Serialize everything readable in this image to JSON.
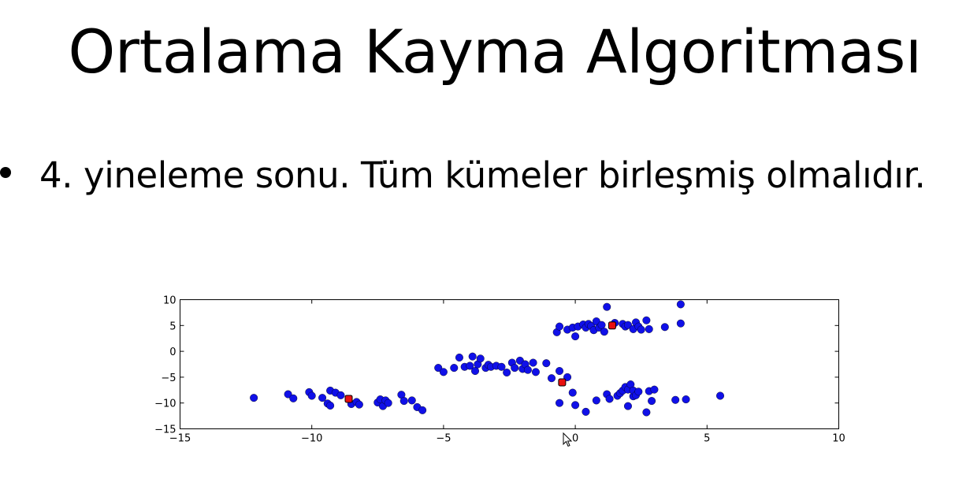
{
  "slide": {
    "title": "Ortalama Kayma Algoritması",
    "bullet": "4. yineleme sonu. Tüm kümeler birleşmiş olmalıdır."
  },
  "colors": {
    "points": "#1010e8",
    "centroids": "#e81010",
    "marker_edge": "#000000"
  },
  "chart_data": {
    "type": "scatter",
    "xlim": [
      -15,
      10
    ],
    "ylim": [
      -15,
      10
    ],
    "xticks": [
      -15,
      -10,
      -5,
      0,
      5,
      10
    ],
    "yticks": [
      10,
      5,
      0,
      -5,
      -10,
      -15
    ],
    "grid": false,
    "series": [
      {
        "color": "#1010e8",
        "x": [
          -12.2,
          -10.9,
          -10.7,
          -10.1,
          -10.0,
          -9.6,
          -9.4,
          -9.3,
          -9.3,
          -9.1,
          -8.9,
          -8.5,
          -8.3,
          -8.2,
          -7.5,
          -7.4,
          -7.3,
          -7.2,
          -7.1,
          -6.6,
          -6.5,
          -6.2,
          -6.0,
          -5.8,
          -5.2,
          -5.0,
          -4.6,
          -4.4,
          -4.2,
          -4.0,
          -3.9,
          -3.8,
          -3.7,
          -3.6,
          -3.4,
          -3.3,
          -3.2,
          -3.0,
          -2.8,
          -2.6,
          -2.4,
          -2.3,
          -2.1,
          -2.0,
          -1.9,
          -1.8,
          -1.6,
          -1.5,
          -1.1,
          -0.9,
          -0.6,
          -0.7,
          -0.6,
          -0.3,
          -0.1,
          0.0,
          0.1,
          0.3,
          0.4,
          0.5,
          0.6,
          0.7,
          0.8,
          0.9,
          1.0,
          1.1,
          1.2,
          1.5,
          1.8,
          1.9,
          2.0,
          2.2,
          2.3,
          2.4,
          2.5,
          2.7,
          2.8,
          3.4,
          4.0,
          4.0,
          -0.6,
          -0.3,
          -0.1,
          0.0,
          0.4,
          0.8,
          1.2,
          1.3,
          1.6,
          1.7,
          1.8,
          1.9,
          2.0,
          2.0,
          2.1,
          2.2,
          2.2,
          2.3,
          2.4,
          2.7,
          2.8,
          2.9,
          3.0,
          3.8,
          4.2,
          5.5
        ],
        "y": [
          -9.0,
          -8.3,
          -9.1,
          -7.9,
          -8.6,
          -9.0,
          -10.1,
          -7.6,
          -10.5,
          -8.0,
          -8.5,
          -10.2,
          -9.8,
          -10.3,
          -9.9,
          -9.3,
          -10.6,
          -9.5,
          -10.0,
          -8.4,
          -9.6,
          -9.5,
          -10.8,
          -11.4,
          -3.2,
          -4.0,
          -3.2,
          -1.2,
          -3.0,
          -2.8,
          -1.0,
          -3.8,
          -2.5,
          -1.4,
          -3.2,
          -2.6,
          -3.0,
          -2.8,
          -3.0,
          -4.1,
          -2.2,
          -3.2,
          -1.8,
          -3.4,
          -2.5,
          -3.6,
          -2.2,
          -4.0,
          -2.3,
          -5.2,
          -3.8,
          3.7,
          4.8,
          4.2,
          4.6,
          2.9,
          4.8,
          5.2,
          4.6,
          5.3,
          4.9,
          4.1,
          5.8,
          4.6,
          5.1,
          3.8,
          8.6,
          5.5,
          5.3,
          4.8,
          5.1,
          4.3,
          5.6,
          4.8,
          4.2,
          6.0,
          4.3,
          4.7,
          9.1,
          5.4,
          -10.0,
          -5.0,
          -8.0,
          -10.4,
          -11.7,
          -9.5,
          -8.3,
          -9.2,
          -8.6,
          -8.1,
          -7.6,
          -6.9,
          -7.4,
          -10.6,
          -6.4,
          -8.7,
          -7.6,
          -8.5,
          -7.8,
          -11.8,
          -7.7,
          -9.6,
          -7.4,
          -9.4,
          -9.3,
          -8.6
        ]
      },
      {
        "color": "#e81010",
        "x": [
          -8.6,
          -0.5,
          1.4
        ],
        "y": [
          -9.2,
          -6.0,
          5.0
        ]
      }
    ]
  }
}
